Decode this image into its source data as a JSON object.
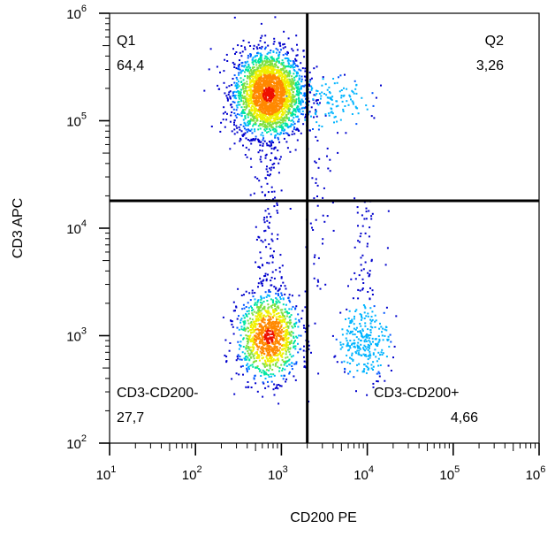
{
  "chart_data": {
    "type": "scatter",
    "title": "",
    "xlabel": "CD200 PE",
    "ylabel": "CD3 APC",
    "x_scale": "log",
    "y_scale": "log",
    "xlim": [
      10,
      1000000
    ],
    "ylim": [
      100,
      1000000
    ],
    "x_ticks": [
      {
        "base": "10",
        "exp": "1",
        "value": 10
      },
      {
        "base": "10",
        "exp": "2",
        "value": 100
      },
      {
        "base": "10",
        "exp": "3",
        "value": 1000
      },
      {
        "base": "10",
        "exp": "4",
        "value": 10000
      },
      {
        "base": "10",
        "exp": "5",
        "value": 100000
      },
      {
        "base": "10",
        "exp": "6",
        "value": 1000000
      }
    ],
    "y_ticks": [
      {
        "base": "10",
        "exp": "2",
        "value": 100
      },
      {
        "base": "10",
        "exp": "3",
        "value": 1000
      },
      {
        "base": "10",
        "exp": "4",
        "value": 10000
      },
      {
        "base": "10",
        "exp": "5",
        "value": 100000
      },
      {
        "base": "10",
        "exp": "6",
        "value": 1000000
      }
    ],
    "gates": {
      "x": 2000,
      "y": 18000
    },
    "quadrants": [
      {
        "id": "q1",
        "name": "Q1",
        "percent": "64,4",
        "position": "top-left"
      },
      {
        "id": "q2",
        "name": "Q2",
        "percent": "3,26",
        "position": "top-right"
      },
      {
        "id": "q3",
        "name": "CD3-CD200-",
        "percent": "27,7",
        "position": "bottom-left"
      },
      {
        "id": "q4",
        "name": "CD3-CD200+",
        "percent": "4,66",
        "position": "bottom-right"
      }
    ],
    "populations": [
      {
        "center": [
          700,
          180000
        ],
        "spread_log": [
          0.2,
          0.2
        ],
        "count": 2600
      },
      {
        "center": [
          700,
          1000
        ],
        "spread_log": [
          0.18,
          0.2
        ],
        "count": 1200
      },
      {
        "center": [
          9000,
          900
        ],
        "spread_log": [
          0.15,
          0.17
        ],
        "count": 280
      },
      {
        "center": [
          3500,
          150000
        ],
        "spread_log": [
          0.25,
          0.12
        ],
        "count": 130
      }
    ],
    "colormap": [
      "#0000cc",
      "#0055ff",
      "#00b4ff",
      "#00e5a0",
      "#7fe040",
      "#f0f000",
      "#ff8800",
      "#ee1100"
    ],
    "grid": false,
    "legend": "none"
  }
}
